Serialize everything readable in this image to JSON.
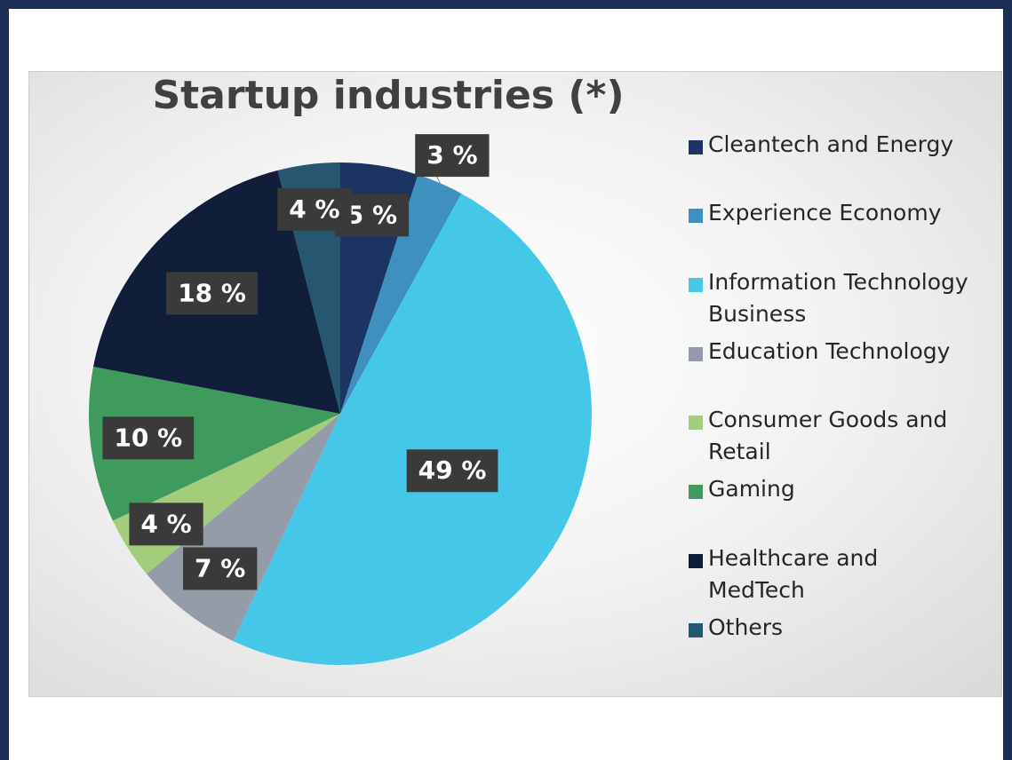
{
  "chart_data": {
    "type": "pie",
    "title": "Startup industries (*)",
    "categories": [
      "Cleantech and Energy",
      "Experience Economy",
      "Information Technology Business",
      "Education Technology",
      "Consumer Goods and Retail",
      "Gaming",
      "Healthcare and MedTech",
      "Others"
    ],
    "values": [
      5,
      3,
      49,
      7,
      4,
      10,
      18,
      4
    ],
    "value_labels": [
      "5 %",
      "3 %",
      "49 %",
      "7 %",
      "4 %",
      "10 %",
      "18 %",
      "4 %"
    ],
    "colors": [
      "#1b3461",
      "#3f8fbf",
      "#45c8e8",
      "#939ca8",
      "#a3cd7a",
      "#3f9a5e",
      "#111e3a",
      "#265670"
    ],
    "legend": "right"
  }
}
